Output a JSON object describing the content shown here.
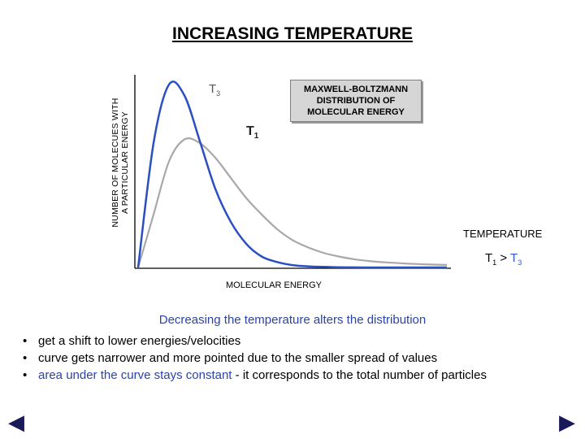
{
  "title": "INCREASING TEMPERATURE",
  "y_axis_label": {
    "line1": "NUMBER OF MOLECUES WITH",
    "line2": "A PARTICULAR ENERGY"
  },
  "x_axis_label": "MOLECULAR ENERGY",
  "info_box": {
    "line1": "MAXWELL-BOLTZMANN",
    "line2": "DISTRIBUTION OF",
    "line3": "MOLECULAR ENERGY"
  },
  "curve_labels": {
    "t3": {
      "main": "T",
      "sub": "3"
    },
    "t1": {
      "main": "T",
      "sub": "1"
    }
  },
  "temperature_heading": "TEMPERATURE",
  "comparison": {
    "t1_main": "T",
    "t1_sub": "1",
    "operator": ">",
    "t3_main": "T",
    "t3_sub": "3"
  },
  "subtitle": "Decreasing the temperature alters the distribution",
  "bullets": {
    "b1": "get a shift to lower energies/velocities",
    "b2": "curve gets narrower and more pointed due to the smaller spread of values",
    "b3_blue": "area under the curve stays constant",
    "b3_rest": " - it corresponds to the total number of particles",
    "marker": "•"
  },
  "nav": {
    "prev_glyph": "◀",
    "next_glyph": "▶"
  },
  "colors": {
    "t3_curve": "#2a4fc0",
    "t1_curve": "#a8a8a8",
    "subtitle": "#2a44a8"
  },
  "chart_data": {
    "type": "line",
    "title": "INCREASING TEMPERATURE",
    "xlabel": "MOLECULAR ENERGY",
    "ylabel": "NUMBER OF MOLECUES WITH A PARTICULAR ENERGY",
    "xlim": [
      0,
      10
    ],
    "ylim": [
      0,
      1
    ],
    "grid": false,
    "series": [
      {
        "name": "T3",
        "x": [
          0,
          0.5,
          1,
          1.5,
          2,
          2.5,
          3,
          3.5,
          4,
          4.5,
          5,
          5.5,
          6,
          6.5,
          7,
          7.5,
          8,
          8.5,
          9,
          9.5,
          10
        ],
        "values": [
          0,
          0.68,
          1.0,
          0.94,
          0.69,
          0.43,
          0.25,
          0.13,
          0.06,
          0.03,
          0.013,
          0.006,
          0.003,
          0.001,
          0.0005,
          0,
          0,
          0,
          0,
          0,
          0
        ]
      },
      {
        "name": "T1",
        "x": [
          0,
          0.5,
          1,
          1.5,
          2,
          2.5,
          3,
          3.5,
          4,
          4.5,
          5,
          5.5,
          6,
          6.5,
          7,
          7.5,
          8,
          8.5,
          9,
          9.5,
          10
        ],
        "values": [
          0,
          0.29,
          0.58,
          0.7,
          0.68,
          0.6,
          0.49,
          0.38,
          0.29,
          0.21,
          0.15,
          0.11,
          0.08,
          0.06,
          0.045,
          0.035,
          0.028,
          0.023,
          0.019,
          0.016,
          0.014
        ]
      }
    ]
  }
}
